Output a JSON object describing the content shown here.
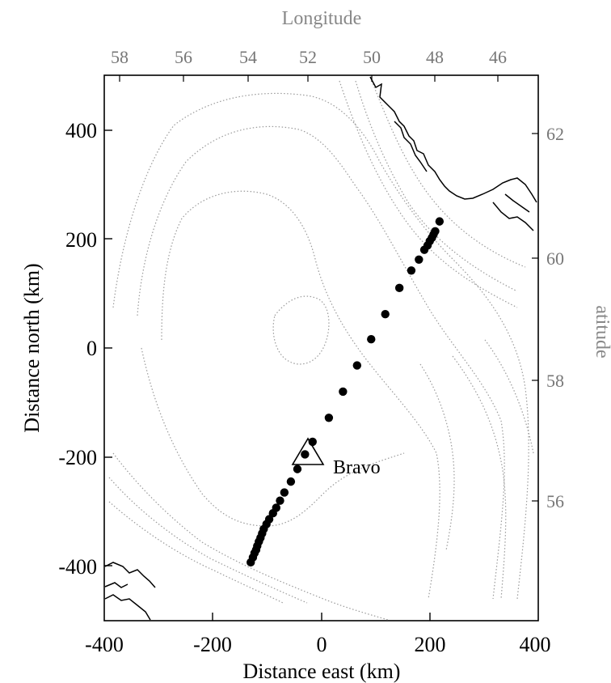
{
  "chart_data": {
    "type": "map",
    "xlabel": "Distance east (km)",
    "ylabel": "Distance north (km)",
    "top_label": "Longitude",
    "right_label": "atitude",
    "xlim": [
      -400,
      400
    ],
    "ylim": [
      -500,
      500
    ],
    "x_ticks": [
      "-400",
      "-200",
      "0",
      "200",
      "400"
    ],
    "y_ticks": [
      "400",
      "200",
      "0",
      "-200",
      "-400"
    ],
    "longitude_ticks": [
      "58",
      "56",
      "54",
      "52",
      "50",
      "48",
      "46"
    ],
    "latitude_ticks": [
      "62",
      "60",
      "58",
      "56"
    ],
    "station": {
      "label": "Bravo",
      "x": -25,
      "y": -200
    },
    "points": [
      [
        -130,
        -393
      ],
      [
        -126,
        -384
      ],
      [
        -123,
        -376
      ],
      [
        -120,
        -370
      ],
      [
        -118,
        -363
      ],
      [
        -115,
        -355
      ],
      [
        -112,
        -348
      ],
      [
        -109,
        -340
      ],
      [
        -106,
        -332
      ],
      [
        -101,
        -323
      ],
      [
        -96,
        -314
      ],
      [
        -89,
        -303
      ],
      [
        -83,
        -293
      ],
      [
        -76,
        -280
      ],
      [
        -68,
        -265
      ],
      [
        -56,
        -245
      ],
      [
        -44,
        -222
      ],
      [
        -30,
        -195
      ],
      [
        -16,
        -172
      ],
      [
        14,
        -128
      ],
      [
        40,
        -80
      ],
      [
        66,
        -32
      ],
      [
        92,
        16
      ],
      [
        118,
        62
      ],
      [
        144,
        110
      ],
      [
        166,
        142
      ],
      [
        180,
        162
      ],
      [
        190,
        180
      ],
      [
        196,
        188
      ],
      [
        200,
        196
      ],
      [
        204,
        202
      ],
      [
        207,
        208
      ],
      [
        210,
        214
      ],
      [
        218,
        232
      ]
    ]
  }
}
